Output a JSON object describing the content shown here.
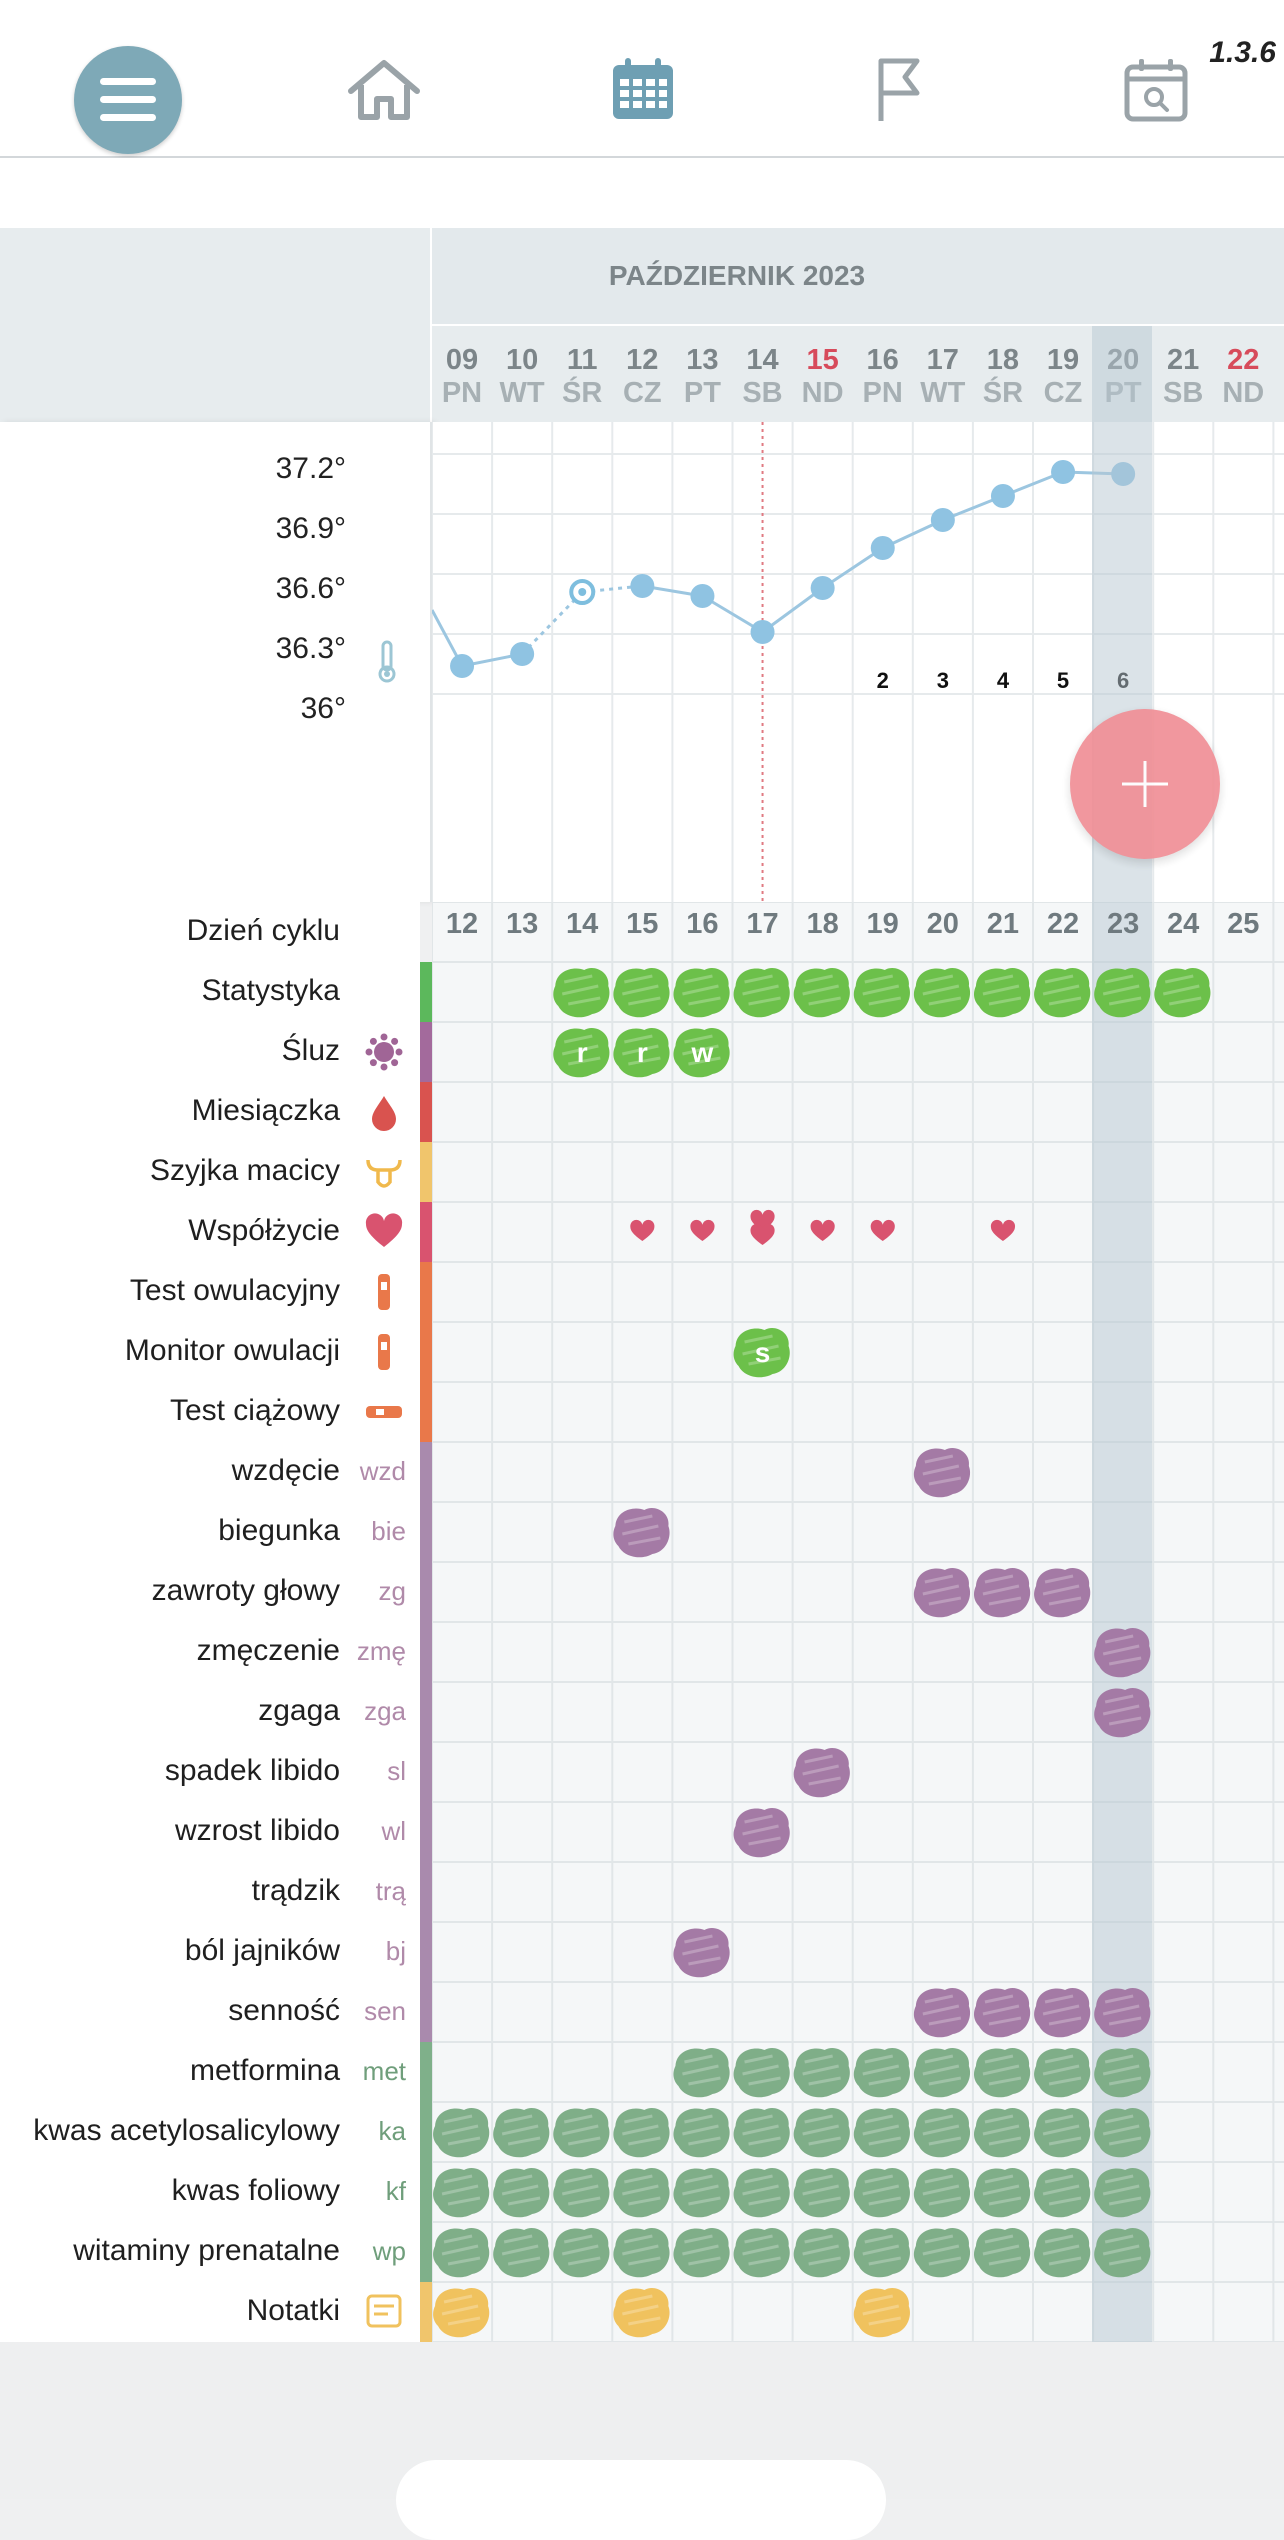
{
  "app": {
    "version": "1.3.6"
  },
  "nav": [
    {
      "name": "menu-icon"
    },
    {
      "name": "home-icon"
    },
    {
      "name": "calendar-icon"
    },
    {
      "name": "flag-icon"
    },
    {
      "name": "calendar-search-icon"
    }
  ],
  "calendar": {
    "month_title": "PAŹDZIERNIK 2023",
    "days": [
      {
        "d": "09",
        "w": "PN",
        "red": false
      },
      {
        "d": "10",
        "w": "WT",
        "red": false
      },
      {
        "d": "11",
        "w": "ŚR",
        "red": false
      },
      {
        "d": "12",
        "w": "CZ",
        "red": false
      },
      {
        "d": "13",
        "w": "PT",
        "red": false
      },
      {
        "d": "14",
        "w": "SB",
        "red": false
      },
      {
        "d": "15",
        "w": "ND",
        "red": true
      },
      {
        "d": "16",
        "w": "PN",
        "red": false
      },
      {
        "d": "17",
        "w": "WT",
        "red": false
      },
      {
        "d": "18",
        "w": "ŚR",
        "red": false
      },
      {
        "d": "19",
        "w": "CZ",
        "red": false
      },
      {
        "d": "20",
        "w": "PT",
        "red": false
      },
      {
        "d": "21",
        "w": "SB",
        "red": false
      },
      {
        "d": "22",
        "w": "ND",
        "red": true
      }
    ],
    "today_index": 11
  },
  "temperature": {
    "labels": [
      "37.2°",
      "36.9°",
      "36.6°",
      "36.3°",
      "36°"
    ],
    "axis": {
      "min": 36.0,
      "max": 37.2
    },
    "points": [
      {
        "i": -1,
        "t": 36.42,
        "hidden": true
      },
      {
        "i": 0,
        "t": 36.14
      },
      {
        "i": 1,
        "t": 36.2
      },
      {
        "i": 2,
        "t": 36.51,
        "open": true
      },
      {
        "i": 3,
        "t": 36.54
      },
      {
        "i": 4,
        "t": 36.49
      },
      {
        "i": 5,
        "t": 36.31
      },
      {
        "i": 6,
        "t": 36.53
      },
      {
        "i": 7,
        "t": 36.73
      },
      {
        "i": 8,
        "t": 36.87
      },
      {
        "i": 9,
        "t": 36.99
      },
      {
        "i": 10,
        "t": 37.11
      },
      {
        "i": 11,
        "t": 37.1
      }
    ],
    "post_ovulation_counts": [
      {
        "i": 7,
        "n": "2"
      },
      {
        "i": 8,
        "n": "3"
      },
      {
        "i": 9,
        "n": "4"
      },
      {
        "i": 10,
        "n": "5"
      },
      {
        "i": 11,
        "n": "6"
      }
    ],
    "ovulation_index": 5
  },
  "cycle_day_label": "Dzień cyklu",
  "cycle_days": [
    "12",
    "13",
    "14",
    "15",
    "16",
    "17",
    "18",
    "19",
    "20",
    "21",
    "22",
    "23",
    "24",
    "25"
  ],
  "rows": [
    {
      "label": "Statystyka",
      "icon": "",
      "abbr": "",
      "strip": "#5cb85c"
    },
    {
      "label": "Śluz",
      "icon": "mucus-icon",
      "abbr": "",
      "strip": "#a36a9c"
    },
    {
      "label": "Miesiączka",
      "icon": "blood-drop-icon",
      "abbr": "",
      "strip": "#d9534f"
    },
    {
      "label": "Szyjka macicy",
      "icon": "uterus-icon",
      "abbr": "",
      "strip": "#f0c56c"
    },
    {
      "label": "Współżycie",
      "icon": "heart-icon",
      "abbr": "",
      "strip": "#d9536f"
    },
    {
      "label": "Test owulacyjny",
      "icon": "ovulation-test-icon",
      "abbr": "",
      "strip": "#e9784a"
    },
    {
      "label": "Monitor owulacji",
      "icon": "ovulation-monitor-icon",
      "abbr": "",
      "strip": "#e9784a"
    },
    {
      "label": "Test ciążowy",
      "icon": "pregnancy-test-icon",
      "abbr": "",
      "strip": "#e9784a"
    },
    {
      "label": "wzdęcie",
      "icon": "",
      "abbr": "wzd",
      "strip": "#a98aad"
    },
    {
      "label": "biegunka",
      "icon": "",
      "abbr": "bie",
      "strip": "#a98aad"
    },
    {
      "label": "zawroty głowy",
      "icon": "",
      "abbr": "zg",
      "strip": "#a98aad"
    },
    {
      "label": "zmęczenie",
      "icon": "",
      "abbr": "zmę",
      "strip": "#a98aad"
    },
    {
      "label": "zgaga",
      "icon": "",
      "abbr": "zga",
      "strip": "#a98aad"
    },
    {
      "label": "spadek libido",
      "icon": "",
      "abbr": "sl",
      "strip": "#a98aad"
    },
    {
      "label": "wzrost libido",
      "icon": "",
      "abbr": "wl",
      "strip": "#a98aad"
    },
    {
      "label": "trądzik",
      "icon": "",
      "abbr": "trą",
      "strip": "#a98aad"
    },
    {
      "label": "ból jajników",
      "icon": "",
      "abbr": "bj",
      "strip": "#a98aad"
    },
    {
      "label": "senność",
      "icon": "",
      "abbr": "sen",
      "strip": "#a98aad"
    },
    {
      "label": "metformina",
      "icon": "",
      "abbr": "met",
      "strip": "#7fb08a"
    },
    {
      "label": "kwas acetylosalicylowy",
      "icon": "",
      "abbr": "ka",
      "strip": "#7fb08a"
    },
    {
      "label": "kwas foliowy",
      "icon": "",
      "abbr": "kf",
      "strip": "#7fb08a"
    },
    {
      "label": "witaminy prenatalne",
      "icon": "",
      "abbr": "wp",
      "strip": "#7fb08a"
    },
    {
      "label": "Notatki",
      "icon": "notes-icon",
      "abbr": "",
      "strip": "#f0c56c"
    }
  ],
  "marks": {
    "stat": {
      "color": "#6cc04a",
      "row": 0,
      "cols": [
        2,
        3,
        4,
        5,
        6,
        7,
        8,
        9,
        10,
        11,
        12
      ]
    },
    "mucus": {
      "color": "#6cc04a",
      "row": 1,
      "items": [
        {
          "c": 2,
          "t": "r"
        },
        {
          "c": 3,
          "t": "r"
        },
        {
          "c": 4,
          "t": "w"
        }
      ]
    },
    "hearts": {
      "color": "#d9536f",
      "row": 4,
      "items": [
        {
          "c": 3,
          "n": 1
        },
        {
          "c": 4,
          "n": 1
        },
        {
          "c": 5,
          "n": 2
        },
        {
          "c": 6,
          "n": 1
        },
        {
          "c": 7,
          "n": 1
        },
        {
          "c": 9,
          "n": 1
        }
      ]
    },
    "monitor": {
      "color": "#6cc04a",
      "row": 6,
      "items": [
        {
          "c": 5,
          "t": "s"
        }
      ]
    },
    "symptoms": {
      "color": "#a47aa5",
      "items": [
        {
          "row": 8,
          "cols": [
            8
          ]
        },
        {
          "row": 9,
          "cols": [
            3
          ]
        },
        {
          "row": 10,
          "cols": [
            8,
            9,
            10
          ]
        },
        {
          "row": 11,
          "cols": [
            11
          ]
        },
        {
          "row": 12,
          "cols": [
            11
          ]
        },
        {
          "row": 13,
          "cols": [
            6
          ]
        },
        {
          "row": 14,
          "cols": [
            5
          ]
        },
        {
          "row": 16,
          "cols": [
            4
          ]
        },
        {
          "row": 17,
          "cols": [
            8,
            9,
            10,
            11
          ]
        }
      ]
    },
    "meds": {
      "color": "#7fae88",
      "items": [
        {
          "row": 18,
          "cols": [
            4,
            5,
            6,
            7,
            8,
            9,
            10,
            11
          ]
        },
        {
          "row": 19,
          "cols": [
            0,
            1,
            2,
            3,
            4,
            5,
            6,
            7,
            8,
            9,
            10,
            11
          ]
        },
        {
          "row": 20,
          "cols": [
            0,
            1,
            2,
            3,
            4,
            5,
            6,
            7,
            8,
            9,
            10,
            11
          ]
        },
        {
          "row": 21,
          "cols": [
            0,
            1,
            2,
            3,
            4,
            5,
            6,
            7,
            8,
            9,
            10,
            11
          ]
        }
      ]
    },
    "notes": {
      "color": "#f0c25e",
      "row": 22,
      "cols": [
        0,
        3,
        7
      ]
    }
  },
  "colors": {
    "accent": "#7ea9b7",
    "fab": "#f08f96",
    "line": "#9cc6e0"
  }
}
